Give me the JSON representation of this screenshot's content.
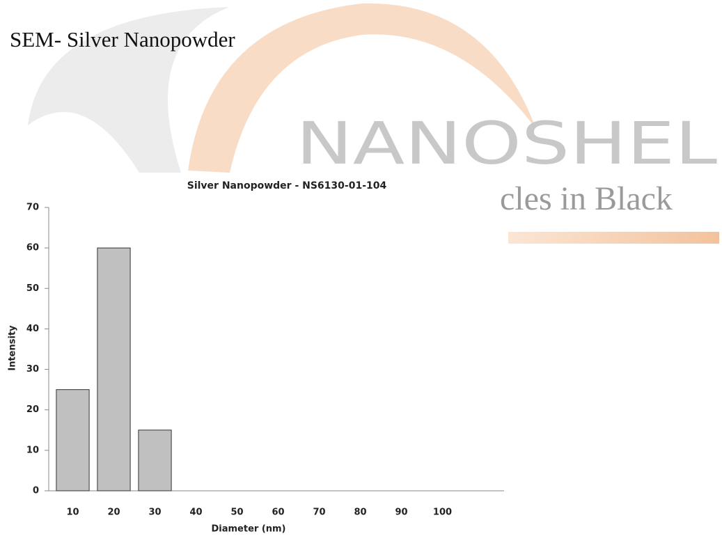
{
  "page": {
    "title": "SEM- Silver Nanopowder",
    "watermark": {
      "brand": "NANOSHEL",
      "tagline": "cles in Black"
    }
  },
  "chart_data": {
    "type": "bar",
    "title": "Silver Nanopowder - NS6130-01-104",
    "x_label": "Diameter (nm)",
    "y_label": "Intensity",
    "categories": [
      "10",
      "20",
      "30",
      "40",
      "50",
      "60",
      "70",
      "80",
      "90",
      "100",
      null
    ],
    "values": [
      25,
      60,
      15,
      0,
      0,
      0,
      0,
      0,
      0,
      0,
      0
    ],
    "color": "#c0c0c0",
    "ylim": [
      0,
      70
    ],
    "yticks": [
      0,
      10,
      20,
      30,
      40,
      50,
      60,
      70
    ],
    "grid": false
  }
}
